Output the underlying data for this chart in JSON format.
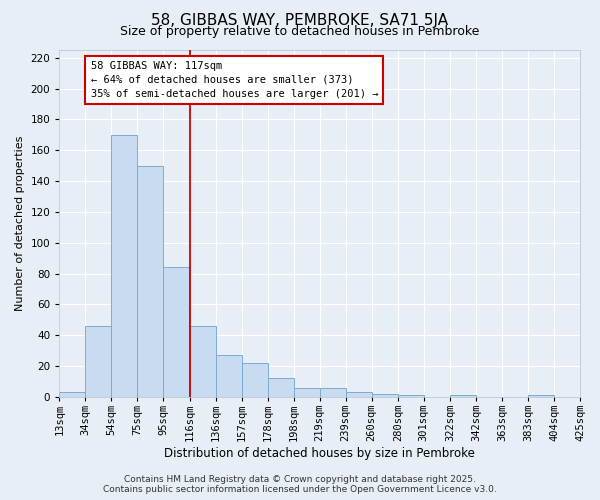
{
  "title": "58, GIBBAS WAY, PEMBROKE, SA71 5JA",
  "subtitle": "Size of property relative to detached houses in Pembroke",
  "xlabel": "Distribution of detached houses by size in Pembroke",
  "ylabel": "Number of detached properties",
  "bin_labels": [
    "13sqm",
    "34sqm",
    "54sqm",
    "75sqm",
    "95sqm",
    "116sqm",
    "136sqm",
    "157sqm",
    "178sqm",
    "198sqm",
    "219sqm",
    "239sqm",
    "260sqm",
    "280sqm",
    "301sqm",
    "322sqm",
    "342sqm",
    "363sqm",
    "383sqm",
    "404sqm",
    "425sqm"
  ],
  "bar_values": [
    3,
    46,
    170,
    150,
    84,
    46,
    27,
    22,
    12,
    6,
    6,
    3,
    2,
    1,
    0,
    1,
    0,
    0,
    1,
    0
  ],
  "bar_color": "#c9dbf0",
  "bar_edge_color": "#7aadd4",
  "vline_x": 4.5,
  "vline_color": "#cc0000",
  "ylim": [
    0,
    225
  ],
  "yticks": [
    0,
    20,
    40,
    60,
    80,
    100,
    120,
    140,
    160,
    180,
    200,
    220
  ],
  "annotation_title": "58 GIBBAS WAY: 117sqm",
  "annotation_line1": "← 64% of detached houses are smaller (373)",
  "annotation_line2": "35% of semi-detached houses are larger (201) →",
  "annotation_box_color": "#ffffff",
  "annotation_box_edge": "#cc0000",
  "footer_line1": "Contains HM Land Registry data © Crown copyright and database right 2025.",
  "footer_line2": "Contains public sector information licensed under the Open Government Licence v3.0.",
  "background_color": "#e8eef5",
  "plot_bg_color": "#e8eef5",
  "grid_color": "#ffffff",
  "title_fontsize": 11,
  "subtitle_fontsize": 9,
  "xlabel_fontsize": 8.5,
  "ylabel_fontsize": 8,
  "tick_fontsize": 7.5,
  "footer_fontsize": 6.5,
  "ann_fontsize": 7.5
}
